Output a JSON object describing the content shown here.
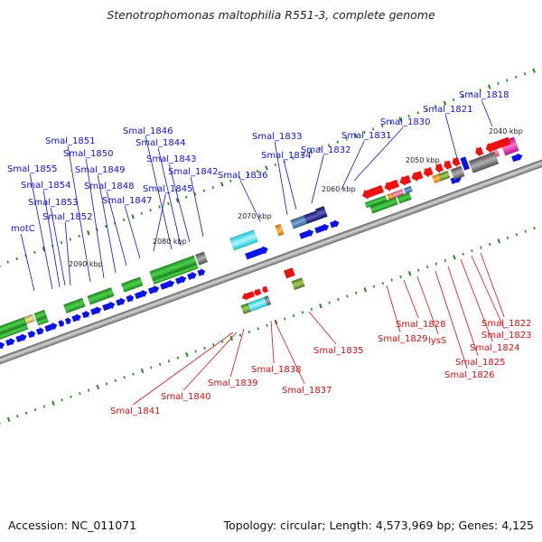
{
  "title": "Stenotrophomonas maltophilia R551-3, complete genome",
  "footer": {
    "accession": "Accession: NC_011071",
    "summary": "Topology: circular; Length: 4,573,969 bp; Genes: 4,125"
  },
  "colors": {
    "forward_label": "#1010cc",
    "reverse_label": "#cc1010",
    "forward_gene": "#0a14e6",
    "reverse_gene": "#ee1010",
    "backbone": "#8a8a8a",
    "tick": "#228822"
  },
  "ticks": [
    "2040 kbp",
    "2050 kbp",
    "2060 kbp",
    "2070 kbp",
    "2080 kbp",
    "2090 kbp"
  ],
  "forward_labels": [
    "Smal_1818",
    "Smal_1821",
    "Smal_1830",
    "Smal_1831",
    "Smal_1832",
    "Smal_1833",
    "Smal_1834",
    "Smal_1836",
    "Smal_1842",
    "Smal_1843",
    "Smal_1844",
    "Smal_1845",
    "Smal_1846",
    "Smal_1847",
    "Smal_1848",
    "Smal_1849",
    "Smal_1850",
    "Smal_1851",
    "Smal_1852",
    "Smal_1853",
    "Smal_1854",
    "Smal_1855",
    "motC"
  ],
  "reverse_labels": [
    "Smal_1822",
    "Smal_1823",
    "Smal_1824",
    "Smal_1825",
    "Smal_1826",
    "lysS",
    "Smal_1828",
    "Smal_1829",
    "Smal_1835",
    "Smal_1837",
    "Smal_1838",
    "Smal_1839",
    "Smal_1840",
    "Smal_1841"
  ]
}
